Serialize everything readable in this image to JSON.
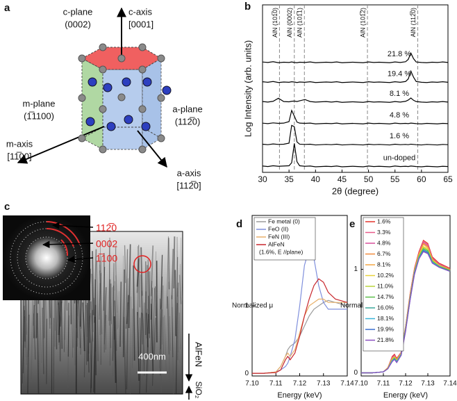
{
  "panel_a": {
    "label": "a",
    "labels": [
      "c-plane",
      "(0002)",
      "c-axis",
      "[0001]",
      "m-plane",
      "(1̅1100)",
      "a-plane",
      "(112̅0)",
      "m-axis",
      "[11̅00]",
      "a-axis",
      "[112̅0]"
    ]
  },
  "panel_c": {
    "label": "c",
    "diffraction_labels": [
      "112̅0",
      "0002",
      "1̅100"
    ],
    "scale_bar": "400nm",
    "layers": [
      "AlFeN",
      "SiO₂"
    ]
  },
  "chart_data": [
    {
      "type": "line",
      "panel_label": "b",
      "xlabel": "2θ (degree)",
      "ylabel": "Log Intensity (arb. units)",
      "xlim": [
        30,
        65
      ],
      "xticks": [
        30,
        35,
        40,
        45,
        50,
        55,
        60,
        65
      ],
      "ylim": [
        0,
        6.6
      ],
      "reference_lines": [
        {
          "x": 33.2,
          "label": "AlN (101̅0)"
        },
        {
          "x": 36.0,
          "label": "AlN (0002)"
        },
        {
          "x": 37.9,
          "label": "AlN (101̅1)"
        },
        {
          "x": 49.8,
          "label": "AlN (101̅2)"
        },
        {
          "x": 59.3,
          "label": "AlN (112̅0)"
        }
      ],
      "x": [
        30,
        31,
        32,
        33,
        34,
        35,
        35.5,
        36,
        36.5,
        37,
        38,
        39,
        40,
        41,
        42,
        43,
        44,
        45,
        46,
        47,
        48,
        49,
        50,
        51,
        52,
        53,
        54,
        55,
        56,
        57,
        57.5,
        58,
        58.5,
        59,
        60,
        61,
        62,
        63,
        64,
        65
      ],
      "series": [
        {
          "name": "21.8 %",
          "color": "#000000",
          "values": [
            4.35,
            4.33,
            4.36,
            4.32,
            4.34,
            4.33,
            4.35,
            4.33,
            4.32,
            4.34,
            4.33,
            4.35,
            4.32,
            4.33,
            4.34,
            4.33,
            4.35,
            4.32,
            4.33,
            4.34,
            4.33,
            4.32,
            4.35,
            4.33,
            4.34,
            4.33,
            4.32,
            4.35,
            4.33,
            4.36,
            4.45,
            4.7,
            4.48,
            4.35,
            4.33,
            4.32,
            4.34,
            4.33,
            4.35,
            4.33
          ]
        },
        {
          "name": "19.4 %",
          "color": "#000000",
          "values": [
            3.57,
            3.55,
            3.58,
            3.54,
            3.56,
            3.55,
            3.57,
            3.56,
            3.54,
            3.56,
            3.55,
            3.57,
            3.54,
            3.55,
            3.56,
            3.55,
            3.57,
            3.54,
            3.55,
            3.56,
            3.55,
            3.54,
            3.57,
            3.55,
            3.56,
            3.55,
            3.54,
            3.57,
            3.55,
            3.58,
            3.68,
            3.99,
            3.75,
            3.58,
            3.55,
            3.54,
            3.56,
            3.55,
            3.57,
            3.55
          ]
        },
        {
          "name": "8.1 %",
          "color": "#000000",
          "values": [
            2.79,
            2.77,
            2.8,
            2.92,
            2.79,
            2.78,
            2.8,
            2.81,
            2.79,
            2.82,
            2.87,
            2.79,
            2.77,
            2.78,
            2.79,
            2.77,
            2.79,
            2.76,
            2.77,
            2.78,
            2.77,
            2.76,
            2.79,
            2.77,
            2.78,
            2.77,
            2.76,
            2.79,
            2.77,
            2.8,
            2.85,
            2.93,
            2.84,
            2.79,
            2.77,
            2.76,
            2.78,
            2.77,
            2.79,
            2.77
          ]
        },
        {
          "name": "4.8 %",
          "color": "#000000",
          "values": [
            1.94,
            1.92,
            1.95,
            1.93,
            1.94,
            2.0,
            2.44,
            2.22,
            1.98,
            1.94,
            1.93,
            1.94,
            1.91,
            1.92,
            1.93,
            1.92,
            1.94,
            1.91,
            1.92,
            1.93,
            1.92,
            1.91,
            1.94,
            1.92,
            1.93,
            1.92,
            1.91,
            1.94,
            1.92,
            1.93,
            1.92,
            1.94,
            1.93,
            1.92,
            1.91,
            1.93,
            1.92,
            1.91,
            1.93,
            1.92
          ]
        },
        {
          "name": "1.6 %",
          "color": "#000000",
          "values": [
            1.11,
            1.09,
            1.12,
            1.1,
            1.11,
            1.15,
            1.85,
            1.8,
            1.2,
            1.11,
            1.1,
            1.11,
            1.08,
            1.09,
            1.1,
            1.09,
            1.11,
            1.08,
            1.09,
            1.1,
            1.09,
            1.08,
            1.11,
            1.09,
            1.1,
            1.09,
            1.08,
            1.11,
            1.09,
            1.1,
            1.09,
            1.11,
            1.1,
            1.09,
            1.08,
            1.1,
            1.09,
            1.08,
            1.1,
            1.09
          ]
        },
        {
          "name": "un-doped",
          "color": "#000000",
          "values": [
            0.25,
            0.23,
            0.26,
            0.24,
            0.25,
            0.26,
            0.38,
            1.14,
            0.42,
            0.26,
            0.24,
            0.25,
            0.22,
            0.23,
            0.24,
            0.23,
            0.25,
            0.22,
            0.23,
            0.24,
            0.23,
            0.22,
            0.25,
            0.23,
            0.24,
            0.23,
            0.22,
            0.25,
            0.23,
            0.24,
            0.23,
            0.25,
            0.24,
            0.23,
            0.22,
            0.24,
            0.23,
            0.22,
            0.24,
            0.23
          ]
        }
      ]
    },
    {
      "type": "line",
      "panel_label": "d",
      "xlabel": "Energy (keV)",
      "ylabel": "Normalized μ",
      "xlim": [
        7.1,
        7.14
      ],
      "xticks": [
        {
          "value": 7.1,
          "label": "7.10"
        },
        7.11,
        7.12,
        7.13,
        7.14
      ],
      "ylim": [
        -0.04,
        2.34
      ],
      "yticks": [
        0,
        1
      ],
      "legend_note": "(1.6%, E //plane)",
      "x": [
        7.1,
        7.105,
        7.11,
        7.112,
        7.114,
        7.115,
        7.116,
        7.118,
        7.12,
        7.122,
        7.124,
        7.126,
        7.128,
        7.13,
        7.132,
        7.135,
        7.14
      ],
      "series": [
        {
          "name": "Fe metal (0)",
          "color": "#9a9a9a",
          "values": [
            0,
            0,
            0.02,
            0.1,
            0.25,
            0.35,
            0.4,
            0.45,
            0.55,
            0.7,
            0.85,
            0.95,
            1.0,
            1.05,
            1.08,
            1.05,
            1.0
          ]
        },
        {
          "name": "FeO (II)",
          "color": "#7f8fdc",
          "values": [
            0,
            0,
            0.02,
            0.05,
            0.1,
            0.15,
            0.25,
            0.5,
            1.0,
            1.6,
            1.85,
            1.7,
            1.3,
            1.05,
            0.95,
            0.95,
            0.95
          ]
        },
        {
          "name": "FeN (III)",
          "color": "#e8b06a",
          "values": [
            0,
            0,
            0.02,
            0.1,
            0.25,
            0.3,
            0.25,
            0.35,
            0.6,
            0.85,
            1.0,
            1.05,
            1.1,
            1.1,
            1.05,
            1.05,
            1.05
          ]
        },
        {
          "name": "AlFeN",
          "color": "#c8262c",
          "values": [
            0,
            0,
            0.01,
            0.05,
            0.2,
            0.25,
            0.2,
            0.3,
            0.55,
            0.85,
            1.1,
            1.3,
            1.4,
            1.35,
            1.2,
            1.1,
            1.05
          ]
        }
      ]
    },
    {
      "type": "line",
      "panel_label": "e",
      "xlabel": "Energy (keV)",
      "ylabel": "Normalized μ",
      "xlim": [
        7.1,
        7.14
      ],
      "xticks": [
        {
          "value": 7.1,
          "label": "7.10"
        },
        7.11,
        7.12,
        7.13,
        7.14
      ],
      "ylim": [
        -0.03,
        1.52
      ],
      "yticks": [
        0,
        1
      ],
      "x": [
        7.1,
        7.105,
        7.11,
        7.112,
        7.114,
        7.115,
        7.116,
        7.118,
        7.12,
        7.122,
        7.124,
        7.126,
        7.128,
        7.13,
        7.132,
        7.135,
        7.14
      ],
      "series": [
        {
          "name": "1.6%",
          "color": "#e4322b",
          "values": [
            0,
            0,
            0.01,
            0.05,
            0.16,
            0.18,
            0.14,
            0.2,
            0.45,
            0.76,
            1.01,
            1.17,
            1.28,
            1.25,
            1.12,
            1.06,
            1.01
          ]
        },
        {
          "name": "3.3%",
          "color": "#e85a8a",
          "values": [
            0,
            0,
            0.01,
            0.05,
            0.15,
            0.17,
            0.13,
            0.2,
            0.45,
            0.75,
            1.0,
            1.16,
            1.27,
            1.24,
            1.11,
            1.05,
            1.0
          ]
        },
        {
          "name": "4.8%",
          "color": "#d94f9c",
          "values": [
            0,
            0,
            0.01,
            0.05,
            0.15,
            0.17,
            0.13,
            0.2,
            0.44,
            0.74,
            1.0,
            1.15,
            1.26,
            1.23,
            1.1,
            1.05,
            1.0
          ]
        },
        {
          "name": "6.7%",
          "color": "#f08a3c",
          "values": [
            0,
            0,
            0.01,
            0.05,
            0.14,
            0.16,
            0.13,
            0.19,
            0.44,
            0.74,
            0.99,
            1.15,
            1.25,
            1.22,
            1.1,
            1.04,
            1.0
          ]
        },
        {
          "name": "8.1%",
          "color": "#f4a742",
          "values": [
            0,
            0,
            0.01,
            0.05,
            0.14,
            0.16,
            0.12,
            0.19,
            0.44,
            0.73,
            0.99,
            1.14,
            1.24,
            1.21,
            1.09,
            1.04,
            0.99
          ]
        },
        {
          "name": "10.2%",
          "color": "#e8d23a",
          "values": [
            0,
            0,
            0.01,
            0.04,
            0.13,
            0.15,
            0.12,
            0.19,
            0.43,
            0.73,
            0.98,
            1.13,
            1.22,
            1.2,
            1.09,
            1.04,
            0.99
          ]
        },
        {
          "name": "11.0%",
          "color": "#b8d43a",
          "values": [
            0,
            0,
            0.01,
            0.04,
            0.13,
            0.15,
            0.12,
            0.18,
            0.43,
            0.72,
            0.98,
            1.13,
            1.21,
            1.19,
            1.08,
            1.03,
            0.99
          ]
        },
        {
          "name": "14.7%",
          "color": "#5bbf4a",
          "values": [
            0,
            0,
            0.01,
            0.04,
            0.12,
            0.14,
            0.11,
            0.18,
            0.42,
            0.72,
            0.97,
            1.12,
            1.2,
            1.18,
            1.08,
            1.03,
            0.99
          ]
        },
        {
          "name": "16.0%",
          "color": "#3aa89a",
          "values": [
            0,
            0,
            0.01,
            0.04,
            0.12,
            0.14,
            0.11,
            0.18,
            0.42,
            0.71,
            0.97,
            1.11,
            1.19,
            1.17,
            1.07,
            1.03,
            0.98
          ]
        },
        {
          "name": "18.1%",
          "color": "#38b4d8",
          "values": [
            0,
            0,
            0.01,
            0.04,
            0.12,
            0.13,
            0.11,
            0.17,
            0.41,
            0.71,
            0.96,
            1.11,
            1.18,
            1.16,
            1.07,
            1.02,
            0.98
          ]
        },
        {
          "name": "19.9%",
          "color": "#3a6fd0",
          "values": [
            0,
            0,
            0.01,
            0.04,
            0.11,
            0.13,
            0.1,
            0.17,
            0.41,
            0.7,
            0.96,
            1.1,
            1.18,
            1.16,
            1.06,
            1.02,
            0.98
          ]
        },
        {
          "name": "21.8%",
          "color": "#8a4fc0",
          "values": [
            0,
            0,
            0.01,
            0.04,
            0.11,
            0.13,
            0.1,
            0.17,
            0.4,
            0.7,
            0.95,
            1.1,
            1.17,
            1.15,
            1.06,
            1.02,
            0.98
          ]
        }
      ]
    }
  ]
}
